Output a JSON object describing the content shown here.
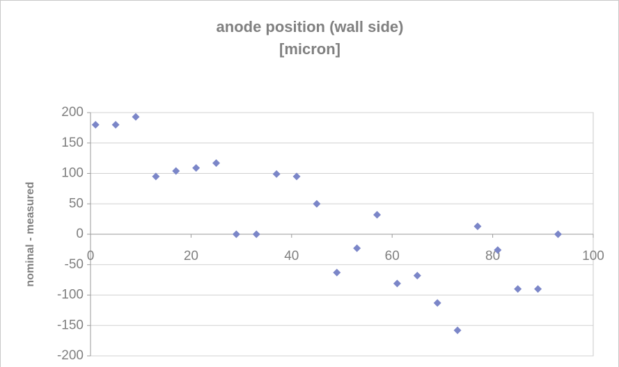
{
  "chart_data": {
    "type": "scatter",
    "title": [
      "anode position (wall side)",
      "[micron]"
    ],
    "y_label": "nominal - measured",
    "x": [
      1,
      5,
      9,
      13,
      17,
      21,
      25,
      29,
      33,
      37,
      41,
      45,
      49,
      53,
      57,
      61,
      65,
      69,
      73,
      77,
      81,
      85,
      89,
      93
    ],
    "series": [
      {
        "name": "nominal - measured",
        "color": "#7b86c8",
        "values": [
          180,
          180,
          193,
          95,
          104,
          109,
          117,
          0,
          0,
          99,
          95,
          50,
          -63,
          -23,
          32,
          -81,
          -68,
          -113,
          -158,
          13,
          -26,
          -90,
          -90,
          0
        ]
      }
    ],
    "xlim": [
      0,
      100
    ],
    "xticks": [
      0,
      20,
      40,
      60,
      80,
      100
    ],
    "ylim": [
      -200,
      200
    ],
    "yticks": [
      -200,
      -150,
      -100,
      -50,
      0,
      50,
      100,
      150,
      200
    ],
    "grid": true
  }
}
